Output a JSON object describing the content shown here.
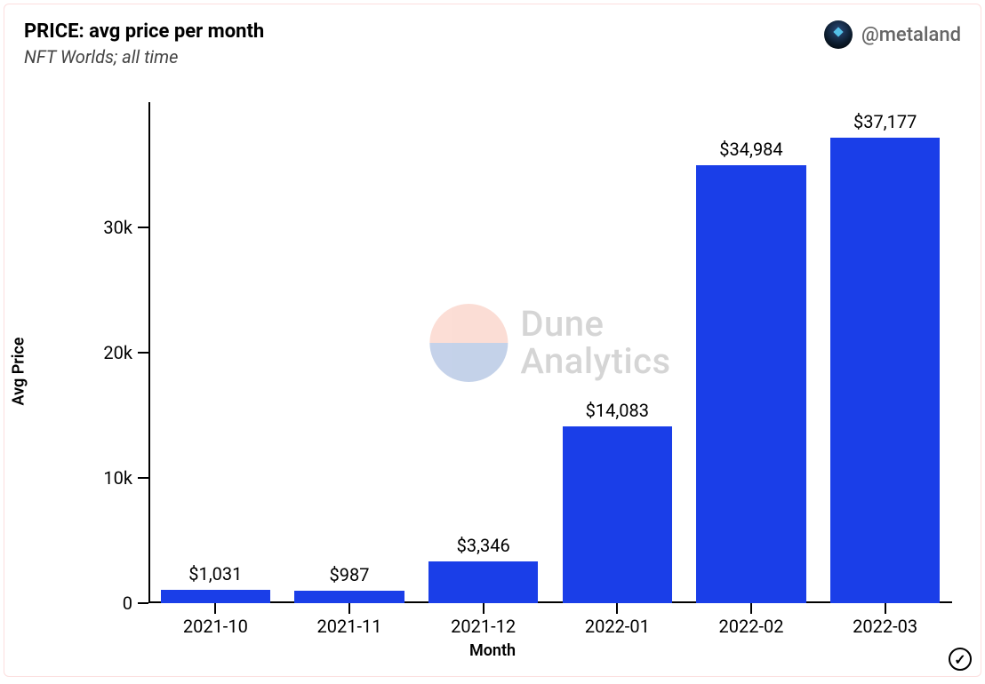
{
  "card": {
    "title": "PRICE: avg price per month",
    "subtitle": "NFT Worlds; all time",
    "author_handle": "@metaland",
    "border_color": "#fcdede",
    "background_color": "#ffffff"
  },
  "watermark": {
    "line1": "Dune",
    "line2": "Analytics",
    "top_color": "#f5a08a",
    "bottom_color": "#5a7fc2",
    "text_color": "#888888",
    "opacity": 0.35
  },
  "chart": {
    "type": "bar",
    "xlabel": "Month",
    "ylabel": "Avg Price",
    "categories": [
      "2021-10",
      "2021-11",
      "2021-12",
      "2022-01",
      "2022-02",
      "2022-03"
    ],
    "values": [
      1031,
      987,
      3346,
      14083,
      34984,
      37177
    ],
    "value_labels": [
      "$1,031",
      "$987",
      "$3,346",
      "$14,083",
      "$34,984",
      "$37,177"
    ],
    "bar_color": "#1a3ee8",
    "ylim": [
      0,
      40000
    ],
    "yticks": [
      0,
      10000,
      20000,
      30000
    ],
    "ytick_labels": [
      "0",
      "10k",
      "20k",
      "30k"
    ],
    "axis_color": "#000000",
    "label_fontsize": 18,
    "tick_fontsize": 20,
    "value_label_fontsize": 20,
    "bar_width_ratio": 0.82,
    "background_color": "#ffffff",
    "title_fontsize": 22,
    "subtitle_fontsize": 20
  },
  "badge": {
    "glyph": "✓"
  }
}
